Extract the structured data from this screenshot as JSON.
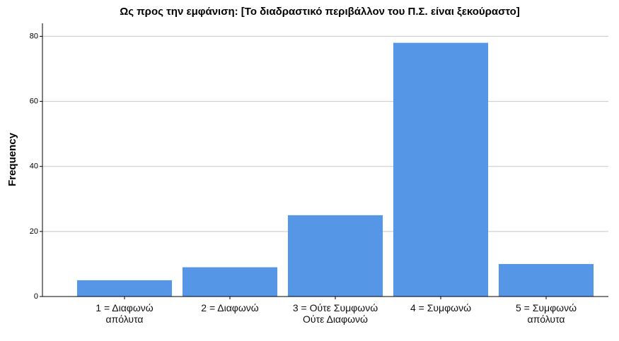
{
  "chart_data": {
    "type": "bar",
    "title": "Ως προς την εμφάνιση: [Το διαδραστικό περιβάλλον του Π.Σ. είναι ξεκούραστο]",
    "y_label": "Frequency",
    "categories": [
      "1 = Διαφωνώ απόλυτα",
      "2 = Διαφωνώ",
      "3 = Ούτε Συμφωνώ Ούτε Διαφωνώ",
      "4 = Συμφωνώ",
      "5 = Συμφωνώ απόλυτα"
    ],
    "values": [
      5,
      9,
      25,
      78,
      10
    ],
    "color": "#5596e6",
    "ylim": [
      0,
      84
    ],
    "yticks": [
      0,
      20,
      40,
      60,
      80
    ],
    "grid": true
  }
}
